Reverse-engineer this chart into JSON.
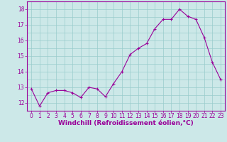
{
  "x": [
    0,
    1,
    2,
    3,
    4,
    5,
    6,
    7,
    8,
    9,
    10,
    11,
    12,
    13,
    14,
    15,
    16,
    17,
    18,
    19,
    20,
    21,
    22,
    23
  ],
  "y": [
    12.9,
    11.8,
    12.65,
    12.8,
    12.8,
    12.65,
    12.35,
    13.0,
    12.9,
    12.4,
    13.25,
    14.0,
    15.1,
    15.5,
    15.8,
    16.75,
    17.35,
    17.35,
    18.0,
    17.55,
    17.35,
    16.2,
    14.6,
    13.5
  ],
  "line_color": "#990099",
  "marker": "+",
  "marker_size": 3.5,
  "marker_linewidth": 0.8,
  "bg_color": "#cce8e8",
  "grid_color": "#99cccc",
  "xlabel": "Windchill (Refroidissement éolien,°C)",
  "xlabel_fontsize": 6.5,
  "xlabel_color": "#990099",
  "tick_color": "#990099",
  "tick_labelsize": 5.5,
  "ylim": [
    11.5,
    18.5
  ],
  "xlim": [
    -0.5,
    23.5
  ],
  "yticks": [
    12,
    13,
    14,
    15,
    16,
    17,
    18
  ],
  "xticks": [
    0,
    1,
    2,
    3,
    4,
    5,
    6,
    7,
    8,
    9,
    10,
    11,
    12,
    13,
    14,
    15,
    16,
    17,
    18,
    19,
    20,
    21,
    22,
    23
  ],
  "line_width": 0.8
}
